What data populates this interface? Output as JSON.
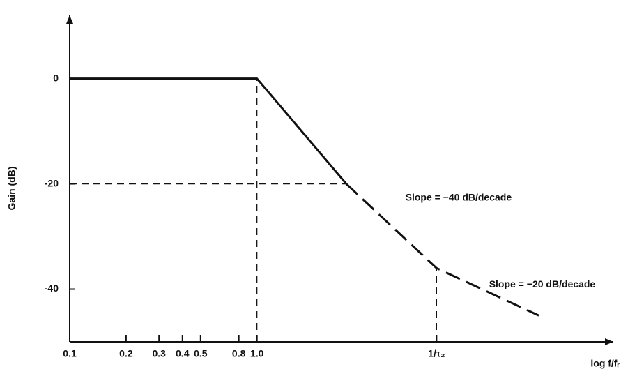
{
  "chart_data": {
    "type": "line",
    "xlabel": "log f/fᵣ",
    "ylabel": "Gain (dB)",
    "xscale": "log",
    "xlim": [
      0.1,
      80
    ],
    "ylim": [
      -50,
      12
    ],
    "xticks": [
      0.1,
      0.2,
      0.3,
      0.4,
      0.5,
      0.8,
      {
        "value": 1,
        "label": "1.0"
      },
      {
        "value": 9.1,
        "label": "1/τ₂"
      }
    ],
    "yticks": [
      0,
      -20,
      -40
    ],
    "series": [
      {
        "color": "#111111",
        "line_style": "solid",
        "x": [
          0.1,
          1,
          3
        ],
        "values": [
          0,
          0,
          -20
        ]
      },
      {
        "color": "#111111",
        "line_style": "dashed",
        "x": [
          3,
          9.1,
          32
        ],
        "values": [
          -20,
          -36,
          -45
        ]
      }
    ],
    "annotations": [
      "Slope = −40 dB/decade",
      "Slope = −20 dB/decade"
    ]
  }
}
